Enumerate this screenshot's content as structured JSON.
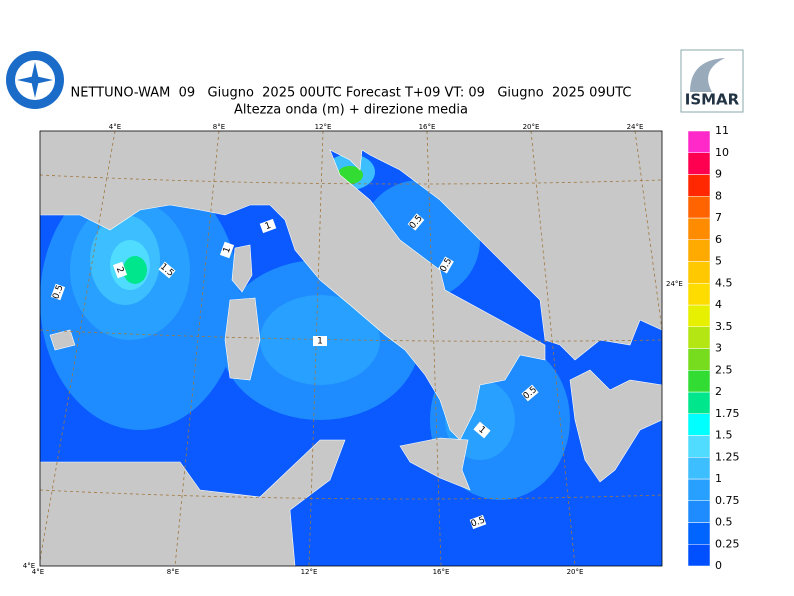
{
  "header": {
    "title": "NETTUNO-WAM  09   Giugno  2025 00UTC Forecast T+09 VT: 09   Giugno  2025 09UTC",
    "subtitle": "Altezza onda (m) + direzione media"
  },
  "logo": {
    "right": "ISMAR"
  },
  "map": {
    "lon_top": [
      "4°E",
      "8°E",
      "12°E",
      "16°E",
      "20°E",
      "24°E"
    ],
    "lon_bottom": [
      "4°E",
      "8°E",
      "12°E",
      "16°E",
      "20°E"
    ],
    "lat_right": "24°E",
    "corner": "4°E",
    "contour_labels": [
      0.5,
      2,
      1.5,
      1,
      1,
      1,
      0.5,
      0.5,
      0.5,
      1,
      0.5
    ]
  },
  "colorbar": {
    "levels": [
      0,
      0.25,
      0.5,
      0.75,
      1,
      1.25,
      1.5,
      1.75,
      2,
      2.5,
      3,
      3.5,
      4,
      4.5,
      5,
      6,
      7,
      8,
      9,
      10,
      11
    ],
    "colors": [
      "#0050ff",
      "#0064ff",
      "#1e8cff",
      "#28a0ff",
      "#3cbeff",
      "#50dcff",
      "#00ffff",
      "#00e68c",
      "#32dc32",
      "#78dc1e",
      "#b4e614",
      "#e6f000",
      "#ffdc00",
      "#ffc800",
      "#ffaa00",
      "#ff8c00",
      "#ff6400",
      "#ff2800",
      "#ff0050",
      "#ff28c8"
    ]
  }
}
